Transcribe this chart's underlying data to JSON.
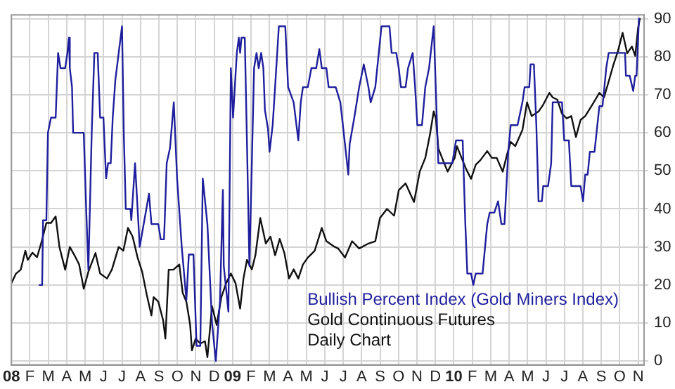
{
  "chart_data": {
    "type": "line",
    "xlim": [
      2008,
      2010.86
    ],
    "ylim": [
      -1,
      91
    ],
    "xticks": [
      {
        "value": 2008,
        "label": "08"
      },
      {
        "value": 2008.0833,
        "label": "F"
      },
      {
        "value": 2008.1667,
        "label": "M"
      },
      {
        "value": 2008.25,
        "label": "A"
      },
      {
        "value": 2008.3333,
        "label": "M"
      },
      {
        "value": 2008.4167,
        "label": "J"
      },
      {
        "value": 2008.5,
        "label": "J"
      },
      {
        "value": 2008.5833,
        "label": "A"
      },
      {
        "value": 2008.6667,
        "label": "S"
      },
      {
        "value": 2008.75,
        "label": "O"
      },
      {
        "value": 2008.8333,
        "label": "N"
      },
      {
        "value": 2008.9167,
        "label": "D"
      },
      {
        "value": 2009,
        "label": "09"
      },
      {
        "value": 2009.0833,
        "label": "F"
      },
      {
        "value": 2009.1667,
        "label": "M"
      },
      {
        "value": 2009.25,
        "label": "A"
      },
      {
        "value": 2009.3333,
        "label": "M"
      },
      {
        "value": 2009.4167,
        "label": "J"
      },
      {
        "value": 2009.5,
        "label": "J"
      },
      {
        "value": 2009.5833,
        "label": "A"
      },
      {
        "value": 2009.6667,
        "label": "S"
      },
      {
        "value": 2009.75,
        "label": "O"
      },
      {
        "value": 2009.8333,
        "label": "N"
      },
      {
        "value": 2009.9167,
        "label": "D"
      },
      {
        "value": 2010,
        "label": "10"
      },
      {
        "value": 2010.0833,
        "label": "F"
      },
      {
        "value": 2010.1667,
        "label": "M"
      },
      {
        "value": 2010.25,
        "label": "A"
      },
      {
        "value": 2010.3333,
        "label": "M"
      },
      {
        "value": 2010.4167,
        "label": "J"
      },
      {
        "value": 2010.5,
        "label": "J"
      },
      {
        "value": 2010.5833,
        "label": "A"
      },
      {
        "value": 2010.6667,
        "label": "S"
      },
      {
        "value": 2010.75,
        "label": "O"
      },
      {
        "value": 2010.8333,
        "label": "N"
      }
    ],
    "yticks": [
      0,
      10,
      20,
      30,
      40,
      50,
      60,
      70,
      80,
      90
    ],
    "grid": true,
    "legend": "bottom right",
    "marker": "none",
    "line_style": "solid",
    "annotations": [
      "Daily Chart"
    ],
    "series": [
      {
        "name": "Bullish Percent Index (Gold Miners Index)",
        "color": "#1f1f9e",
        "x": [
          2008.127,
          2008.139,
          2008.143,
          2008.158,
          2008.165,
          2008.179,
          2008.2,
          2008.211,
          2008.222,
          2008.243,
          2008.253,
          2008.26,
          2008.264,
          2008.274,
          2008.279,
          2008.327,
          2008.338,
          2008.348,
          2008.363,
          2008.375,
          2008.39,
          2008.401,
          2008.416,
          2008.428,
          2008.437,
          2008.449,
          2008.458,
          2008.47,
          2008.485,
          2008.5,
          2008.508,
          2008.517,
          2008.538,
          2008.542,
          2008.559,
          2008.58,
          2008.601,
          2008.622,
          2008.633,
          2008.664,
          2008.675,
          2008.69,
          2008.702,
          2008.717,
          2008.734,
          2008.749,
          2008.77,
          2008.791,
          2008.802,
          2008.823,
          2008.837,
          2008.854,
          2008.865,
          2008.886,
          2008.907,
          2008.924,
          2008.943,
          2008.956,
          2008.96,
          2008.981,
          2008.992,
          2009.002,
          2009.019,
          2009.028,
          2009.034,
          2009.04,
          2009.055,
          2009.065,
          2009.076,
          2009.097,
          2009.108,
          2009.118,
          2009.129,
          2009.139,
          2009.146,
          2009.16,
          2009.167,
          2009.181,
          2009.192,
          2009.209,
          2009.238,
          2009.251,
          2009.276,
          2009.297,
          2009.308,
          2009.318,
          2009.34,
          2009.356,
          2009.378,
          2009.392,
          2009.403,
          2009.424,
          2009.434,
          2009.466,
          2009.487,
          2009.508,
          2009.523,
          2009.529,
          2009.55,
          2009.572,
          2009.593,
          2009.614,
          2009.624,
          2009.645,
          2009.673,
          2009.709,
          2009.719,
          2009.74,
          2009.751,
          2009.761,
          2009.782,
          2009.793,
          2009.814,
          2009.825,
          2009.835,
          2009.856,
          2009.871,
          2009.888,
          2009.909,
          2009.93,
          2009.94,
          2009.993,
          2010.01,
          2010.04,
          2010.052,
          2010.061,
          2010.078,
          2010.088,
          2010.099,
          2010.13,
          2010.151,
          2010.162,
          2010.183,
          2010.2,
          2010.215,
          2010.229,
          2010.246,
          2010.257,
          2010.288,
          2010.31,
          2010.32,
          2010.341,
          2010.347,
          2010.362,
          2010.373,
          2010.383,
          2010.398,
          2010.404,
          2010.426,
          2010.44,
          2010.447,
          2010.489,
          2010.499,
          2010.52,
          2010.531,
          2010.573,
          2010.584,
          2010.594,
          2010.605,
          2010.615,
          2010.636,
          2010.647,
          2010.658,
          2010.672,
          2010.679,
          2010.689,
          2010.7,
          2010.774,
          2010.778,
          2010.795,
          2010.811,
          2010.82,
          2010.826,
          2010.837
        ],
        "values": [
          20,
          20,
          37,
          37,
          60,
          64,
          64,
          81,
          77,
          77,
          81,
          85,
          77,
          72,
          60,
          60,
          40,
          24,
          60,
          81,
          81,
          64,
          64,
          48,
          52,
          52,
          64,
          74,
          81,
          88,
          60,
          40,
          40,
          37,
          52,
          30,
          37,
          44,
          36,
          36,
          32,
          32,
          52,
          56,
          68,
          48,
          30,
          16,
          28,
          28,
          4,
          4,
          48,
          36,
          10,
          0,
          16,
          45,
          25,
          13,
          77,
          64,
          81,
          85,
          81,
          85,
          85,
          57,
          25,
          77,
          81,
          77,
          81,
          77,
          66,
          61,
          55,
          62,
          72,
          88,
          88,
          72,
          68,
          58,
          68,
          72,
          72,
          77,
          77,
          82,
          77,
          77,
          72,
          72,
          68,
          57,
          49,
          57,
          64,
          72,
          78,
          72,
          68,
          72,
          88,
          88,
          81,
          81,
          77,
          72,
          72,
          77,
          81,
          72,
          62,
          62,
          72,
          77,
          88,
          52,
          52,
          52,
          58,
          58,
          36,
          23,
          23,
          20,
          23,
          23,
          36,
          39,
          39,
          42,
          36,
          36,
          55,
          62,
          62,
          68,
          72,
          72,
          78,
          78,
          62,
          42,
          42,
          46,
          46,
          52,
          68,
          68,
          58,
          58,
          46,
          46,
          42,
          49,
          49,
          55,
          55,
          61,
          67,
          67,
          71,
          77,
          81,
          81,
          75,
          75,
          71,
          75,
          75,
          90
        ]
      },
      {
        "name": "Gold Continuous Futures",
        "color": "#111111",
        "x": [
          2008,
          2008.021,
          2008.042,
          2008.063,
          2008.074,
          2008.095,
          2008.116,
          2008.137,
          2008.158,
          2008.179,
          2008.2,
          2008.217,
          2008.243,
          2008.264,
          2008.285,
          2008.306,
          2008.327,
          2008.348,
          2008.38,
          2008.401,
          2008.432,
          2008.454,
          2008.485,
          2008.506,
          2008.527,
          2008.548,
          2008.57,
          2008.591,
          2008.612,
          2008.633,
          2008.643,
          2008.664,
          2008.686,
          2008.696,
          2008.711,
          2008.732,
          2008.759,
          2008.774,
          2008.791,
          2008.808,
          2008.816,
          2008.833,
          2008.854,
          2008.875,
          2008.886,
          2008.907,
          2008.928,
          2008.949,
          2008.971,
          2008.992,
          2009.013,
          2009.034,
          2009.049,
          2009.065,
          2009.087,
          2009.103,
          2009.125,
          2009.15,
          2009.171,
          2009.192,
          2009.213,
          2009.234,
          2009.255,
          2009.276,
          2009.297,
          2009.318,
          2009.34,
          2009.371,
          2009.403,
          2009.424,
          2009.456,
          2009.477,
          2009.508,
          2009.54,
          2009.572,
          2009.614,
          2009.645,
          2009.666,
          2009.698,
          2009.73,
          2009.751,
          2009.782,
          2009.82,
          2009.846,
          2009.871,
          2009.892,
          2009.909,
          2009.919,
          2009.93,
          2009.951,
          2009.972,
          2010.004,
          2010.014,
          2010.035,
          2010.056,
          2010.078,
          2010.099,
          2010.12,
          2010.151,
          2010.172,
          2010.194,
          2010.221,
          2010.242,
          2010.257,
          2010.278,
          2010.31,
          2010.331,
          2010.352,
          2010.383,
          2010.404,
          2010.432,
          2010.447,
          2010.468,
          2010.489,
          2010.51,
          2010.531,
          2010.552,
          2010.573,
          2010.594,
          2010.626,
          2010.658,
          2010.679,
          2010.7,
          2010.721,
          2010.742,
          2010.763,
          2010.784,
          2010.805,
          2010.82,
          2010.833,
          2010.841
        ],
        "values": [
          20.5,
          23,
          24,
          29,
          26.6,
          28.5,
          27.3,
          31.5,
          36.3,
          36.3,
          38,
          30,
          24,
          30,
          27.8,
          25.4,
          19,
          23.5,
          28.4,
          23,
          21.7,
          24,
          30,
          29,
          35,
          32.7,
          27.3,
          23.5,
          17.4,
          12,
          16.8,
          15.6,
          10.7,
          5.9,
          24,
          24,
          25.4,
          18,
          15.6,
          9.5,
          2.8,
          5.9,
          4.6,
          5.2,
          1,
          14.4,
          9.5,
          16.8,
          20.5,
          23,
          20.5,
          13.8,
          21.7,
          26.6,
          24.1,
          27.8,
          37.6,
          30.9,
          32.7,
          27.8,
          32.1,
          28.4,
          21.7,
          24.1,
          21.7,
          25.4,
          27.2,
          29,
          35,
          31.5,
          30.2,
          29.6,
          27.2,
          31.5,
          29.6,
          30.9,
          31.5,
          37.6,
          40,
          38.2,
          44.9,
          46.7,
          41.8,
          49.8,
          53.4,
          59.5,
          65.6,
          63.8,
          55.9,
          52.8,
          49.8,
          53.4,
          56.5,
          53.4,
          50.4,
          47.9,
          51.6,
          52.8,
          55.2,
          53.4,
          53.4,
          49.8,
          54.6,
          57.6,
          56.5,
          60.7,
          68,
          64.4,
          65.6,
          67.4,
          70.5,
          69.3,
          68.7,
          65,
          63.8,
          64.4,
          58.9,
          63.4,
          64.4,
          67.4,
          70.5,
          69.3,
          73.5,
          77.8,
          81.5,
          86.3,
          80.9,
          82.7,
          80.2,
          87.6,
          90
        ]
      }
    ]
  }
}
